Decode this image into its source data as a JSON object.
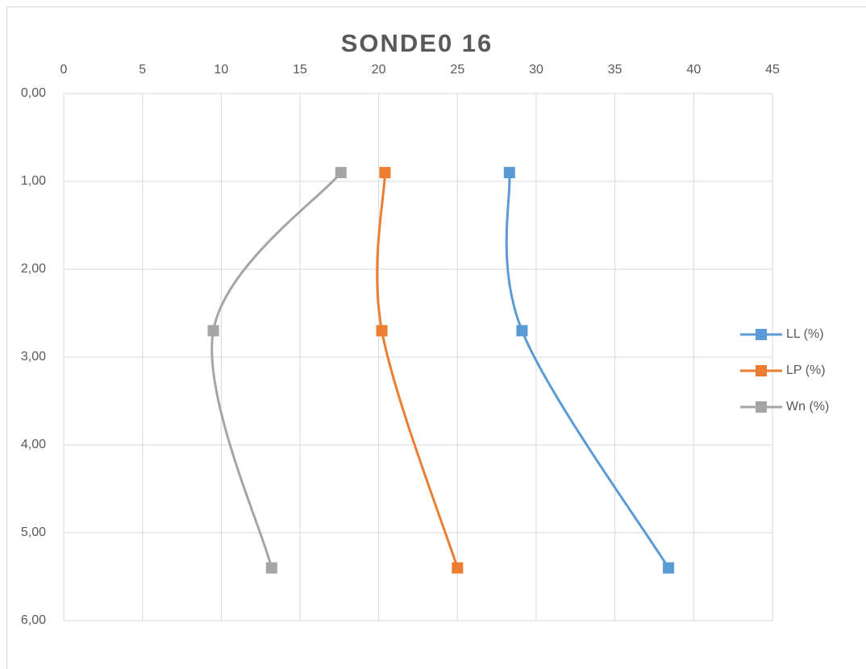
{
  "chart_data": {
    "type": "line",
    "title": "SONDE0 16",
    "y": [
      0.9,
      2.7,
      5.4
    ],
    "series": [
      {
        "name": "LL (%)",
        "color": "#5b9bd5",
        "values": [
          28.3,
          29.1,
          38.4
        ]
      },
      {
        "name": "LP (%)",
        "color": "#ed7d31",
        "values": [
          20.4,
          20.2,
          25.0
        ]
      },
      {
        "name": "Wn (%)",
        "color": "#a5a5a5",
        "values": [
          17.6,
          9.5,
          13.2
        ]
      }
    ],
    "xlim": [
      0,
      45
    ],
    "xticks": [
      0,
      5,
      10,
      15,
      20,
      25,
      30,
      35,
      40,
      45
    ],
    "x_axis_position": "top",
    "ylim": [
      0,
      6
    ],
    "y_inverted": true,
    "yticks": [
      {
        "value": 0,
        "label": "0,00"
      },
      {
        "value": 1,
        "label": "1,00"
      },
      {
        "value": 2,
        "label": "2,00"
      },
      {
        "value": 3,
        "label": "3,00"
      },
      {
        "value": 4,
        "label": "4,00"
      },
      {
        "value": 5,
        "label": "5,00"
      },
      {
        "value": 6,
        "label": "6,00"
      }
    ],
    "grid": true,
    "smooth": true,
    "legend": "right"
  }
}
